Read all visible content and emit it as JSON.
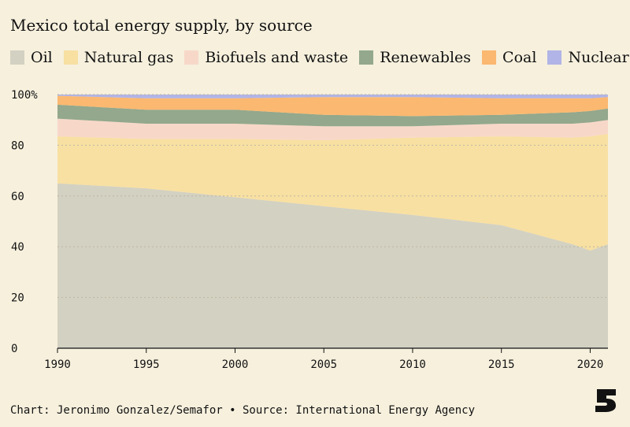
{
  "colors": {
    "background": "#f6f0dd",
    "grid": "#bdb6a3",
    "text": "#121212"
  },
  "chart_data": {
    "type": "area",
    "stacked": true,
    "title": "Mexico total energy supply, by source",
    "xlabel": "",
    "ylabel": "",
    "x": [
      1990,
      1995,
      2000,
      2005,
      2010,
      2015,
      2019,
      2020,
      2021
    ],
    "xlim": [
      1990,
      2021
    ],
    "ylim": [
      0,
      100
    ],
    "x_ticks": [
      "1990",
      "1995",
      "2000",
      "2005",
      "2010",
      "2015",
      "2020"
    ],
    "y_ticks": [
      "0",
      "20",
      "40",
      "60",
      "80",
      "100%"
    ],
    "grid": true,
    "legend_position": "top",
    "series": [
      {
        "name": "Oil",
        "color": "#d3d1c2",
        "values": [
          65,
          63,
          59.5,
          56,
          52.5,
          48.5,
          41,
          38.5,
          41
        ]
      },
      {
        "name": "Natural gas",
        "color": "#f8e0a2",
        "values": [
          18.5,
          19.5,
          23,
          26,
          30.5,
          35,
          42,
          45,
          43.5
        ]
      },
      {
        "name": "Biofuels and waste",
        "color": "#f7d8c8",
        "values": [
          7,
          6,
          6,
          5.5,
          4.5,
          5,
          5.5,
          5.5,
          5.5
        ]
      },
      {
        "name": "Renewables",
        "color": "#93a88c",
        "values": [
          5.5,
          5.5,
          5.5,
          4.5,
          4,
          3.5,
          4.5,
          4.5,
          4.5
        ]
      },
      {
        "name": "Coal",
        "color": "#fbb870",
        "values": [
          3.5,
          4.5,
          4.5,
          7,
          7.5,
          6.5,
          5.5,
          5,
          4.5
        ]
      },
      {
        "name": "Nuclear",
        "color": "#b1b4e6",
        "values": [
          0.5,
          1.5,
          1.5,
          1,
          1,
          1.5,
          1.5,
          1.5,
          1
        ]
      }
    ]
  },
  "footer": {
    "credit": "Chart: Jeronimo Gonzalez/Semafor • Source: International Energy Agency"
  },
  "logo": {
    "icon": "semafor-logo-icon",
    "color": "#121212"
  }
}
